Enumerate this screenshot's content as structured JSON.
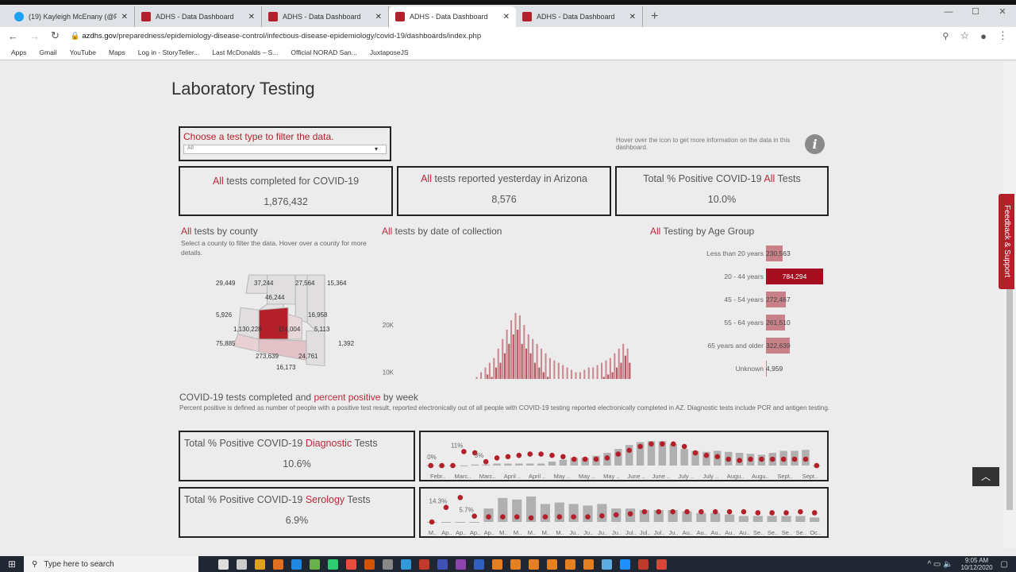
{
  "browser": {
    "tabs": [
      {
        "label": "(19) Kayleigh McEnany (@PressS",
        "icon": "twitter-icon"
      },
      {
        "label": "ADHS - Data Dashboard"
      },
      {
        "label": "ADHS - Data Dashboard"
      },
      {
        "label": "ADHS - Data Dashboard",
        "active": true
      },
      {
        "label": "ADHS - Data Dashboard"
      }
    ],
    "url_domain": "azdhs.gov",
    "url_path": "/preparedness/epidemiology-disease-control/infectious-disease-epidemiology/covid-19/dashboards/index.php",
    "bookmarks": [
      "Apps",
      "Gmail",
      "YouTube",
      "Maps",
      "Log in - StoryTeller...",
      "Last McDonalds – S...",
      "Official NORAD San...",
      "JuxtaposeJS"
    ]
  },
  "page": {
    "title": "Laboratory Testing",
    "filter": {
      "label": "Choose a test type to filter the data.",
      "value": "All"
    },
    "hover_note": "Hover over the icon to get more information on the data in this dashboard.",
    "kpis": [
      {
        "accent": "All",
        "label": " tests completed for COVID-19",
        "value": "1,876,432"
      },
      {
        "accent": "All",
        "label": " tests reported yesterday in Arizona",
        "value": "8,576"
      },
      {
        "prefix": "Total % Positive COVID-19 ",
        "accent": "All",
        "label": " Tests",
        "value": "10.0%"
      }
    ],
    "county": {
      "accent": "All",
      "title": " tests by county",
      "note": "Select a county to filter the data. Hover over a county for more details.",
      "labels": [
        "29,449",
        "37,244",
        "27,564",
        "15,364",
        "46,244",
        "5,926",
        "16,958",
        "1,130,228",
        "114,004",
        "5,113",
        "1,392",
        "75,885",
        "273,639",
        "24,761",
        "16,173"
      ]
    },
    "daily": {
      "accent": "All",
      "title": " tests by date of collection"
    },
    "age": {
      "accent": "All",
      "title": " Testing by Age Group",
      "groups": [
        {
          "label": "Less than 20 years",
          "value": 230563,
          "text": "230,563"
        },
        {
          "label": "20 - 44 years",
          "value": 784294,
          "text": "784,294",
          "selected": true
        },
        {
          "label": "45 - 54 years",
          "value": 272467,
          "text": "272,467"
        },
        {
          "label": "55 - 64 years",
          "value": 261510,
          "text": "261,510"
        },
        {
          "label": "65 years and older",
          "value": 322639,
          "text": "322,639"
        },
        {
          "label": "Unknown",
          "value": 4959,
          "text": "4,959"
        }
      ]
    },
    "weekly_title": {
      "a": "COVID-19 tests completed",
      "b": " and ",
      "c": "percent positive",
      "d": " by week"
    },
    "weekly_note": "Percent positive is defined as number of people with a positive test result, reported electronically out of all people with COVID-19 testing reported electronically completed in AZ. Diagnostic tests include PCR and antigen testing.",
    "diag": {
      "prefix": "Total % Positive COVID-19 ",
      "accent": "Diagnostic",
      "label": " Tests",
      "value": "10.6%"
    },
    "sero": {
      "prefix": "Total % Positive COVID-19 ",
      "accent": "Serology",
      "label": " Tests",
      "value": "6.9%"
    },
    "feedback": "Feedback & Support"
  },
  "chart_data": [
    {
      "type": "bar",
      "name": "daily",
      "x_ticks": [
        "Mar 1",
        "Apr 1",
        "May 1",
        "Jun 1",
        "Jul 1",
        "Aug 1",
        "Sep 1",
        "Oct 1"
      ],
      "y_ticks": [
        "0K",
        "10K",
        "20K"
      ],
      "ylim": [
        0,
        24000
      ],
      "x_start": "2020-03-01",
      "interval_days": 2,
      "values": [
        300,
        500,
        400,
        700,
        600,
        900,
        800,
        1200,
        1000,
        1500,
        1300,
        1800,
        1500,
        2000,
        1700,
        2200,
        1800,
        2300,
        2000,
        2600,
        2200,
        3000,
        2400,
        3200,
        2800,
        3800,
        3500,
        5500,
        4500,
        7000,
        5000,
        8000,
        6500,
        9000,
        7500,
        10000,
        8000,
        11000,
        9500,
        12000,
        9000,
        13000,
        11000,
        15000,
        12000,
        17000,
        14000,
        19000,
        16000,
        21000,
        18000,
        22500,
        19000,
        22000,
        16000,
        20000,
        15000,
        18000,
        14000,
        17000,
        12000,
        16000,
        11000,
        15000,
        10000,
        14000,
        9000,
        13000,
        8500,
        12500,
        8000,
        12000,
        7500,
        11500,
        7000,
        11000,
        6500,
        10500,
        6000,
        10000,
        6500,
        10000,
        7000,
        10500,
        7000,
        11000,
        7500,
        11000,
        8000,
        11500,
        8500,
        12000,
        9000,
        12500,
        9500,
        13000,
        10000,
        14000,
        11000,
        15000,
        12000,
        16000,
        13500,
        15000,
        12000
      ],
      "color": "#c98a91",
      "highlight_color": "#a8303c"
    },
    {
      "type": "bar+dot",
      "name": "diagnostic_weekly",
      "x_labels": [
        "Febr..",
        "Marc..",
        "Marc..",
        "April ..",
        "April ..",
        "May ..",
        "May ..",
        "May ..",
        "June ..",
        "June ..",
        "July ..",
        "July ..",
        "Augu..",
        "Augu..",
        "Sept..",
        "Sept.."
      ],
      "labels": {
        "0": "0%",
        "3": "11%",
        "5": "3%"
      },
      "tests": [
        0,
        0,
        0,
        0,
        1,
        1,
        2,
        2,
        2,
        2,
        2,
        4,
        6,
        8,
        8,
        10,
        13,
        17,
        21,
        24,
        25,
        25,
        22,
        17,
        15,
        14,
        15,
        14,
        13,
        12,
        11,
        13,
        15,
        15,
        16,
        0
      ],
      "pct": [
        0,
        0,
        0,
        11,
        10,
        3,
        6,
        7,
        8,
        9,
        9,
        8,
        7,
        5,
        5,
        5,
        6,
        9,
        12,
        15,
        17,
        17,
        17,
        15,
        10,
        8,
        7,
        5,
        4,
        5,
        5,
        5,
        5,
        5,
        5,
        0
      ]
    },
    {
      "type": "bar+dot",
      "name": "serology_weekly",
      "x_labels": [
        "M..",
        "Ap..",
        "Ap..",
        "Ap..",
        "Ap..",
        "M..",
        "M..",
        "M..",
        "M..",
        "M..",
        "Ju..",
        "Ju..",
        "Ju..",
        "Ju..",
        "Jul..",
        "Jul..",
        "Jul..",
        "Ju..",
        "Au..",
        "Au..",
        "Au..",
        "Au..",
        "Au..",
        "Se..",
        "Se..",
        "Se..",
        "Se..",
        "Oc.."
      ],
      "labels": {
        "1": "14.3%",
        "3": "5.7%"
      },
      "tests": [
        0,
        0,
        0,
        0,
        9,
        16,
        15,
        17,
        12,
        13,
        12,
        11,
        12,
        9,
        9,
        8,
        8,
        8,
        7,
        6,
        6,
        5,
        4,
        4,
        4,
        4,
        4,
        3
      ],
      "pct": [
        0,
        14.3,
        24,
        5.7,
        5,
        5,
        5,
        4,
        5,
        5,
        5,
        5,
        6,
        7,
        8,
        10,
        10,
        10,
        10,
        10,
        10,
        10,
        10,
        9,
        9,
        9,
        10,
        9
      ]
    }
  ],
  "taskbar": {
    "search_placeholder": "Type here to search",
    "time": "9:05 AM",
    "date": "10/12/2020"
  },
  "colors": {
    "accent": "#c0283a",
    "dot": "#b3202a",
    "bar": "#b0b0b0"
  }
}
